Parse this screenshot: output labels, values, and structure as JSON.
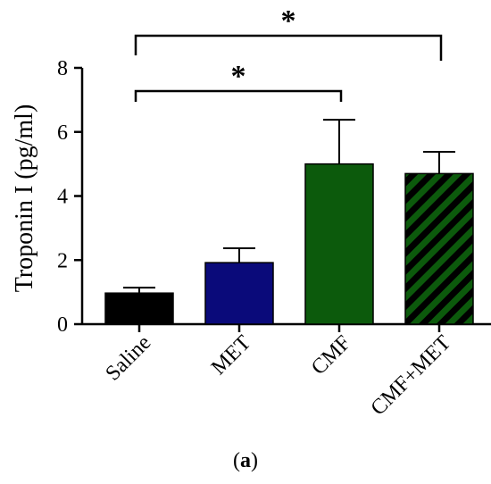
{
  "chart_data": {
    "type": "bar",
    "categories": [
      "Saline",
      "MET",
      "CMF",
      "CMF+MET"
    ],
    "values": [
      0.97,
      1.92,
      5.0,
      4.7
    ],
    "errors": [
      0.17,
      0.45,
      1.38,
      0.68
    ],
    "colors": [
      "#000000",
      "#0a0a7a",
      "#0c5a0c",
      "#0c5a0c"
    ],
    "patterns": [
      "solid",
      "solid",
      "solid",
      "diagonal-stripes"
    ],
    "ylabel": "Troponin I (pg/ml)",
    "xlabel": "",
    "ylim": [
      0,
      8
    ],
    "yticks": [
      0,
      2,
      4,
      6,
      8
    ],
    "grid": false,
    "significance": [
      {
        "from": "Saline",
        "to": "CMF",
        "label": "*"
      },
      {
        "from": "Saline",
        "to": "CMF+MET",
        "label": "*"
      }
    ]
  },
  "caption": {
    "open": "(",
    "letter": "a",
    "close": ")"
  }
}
